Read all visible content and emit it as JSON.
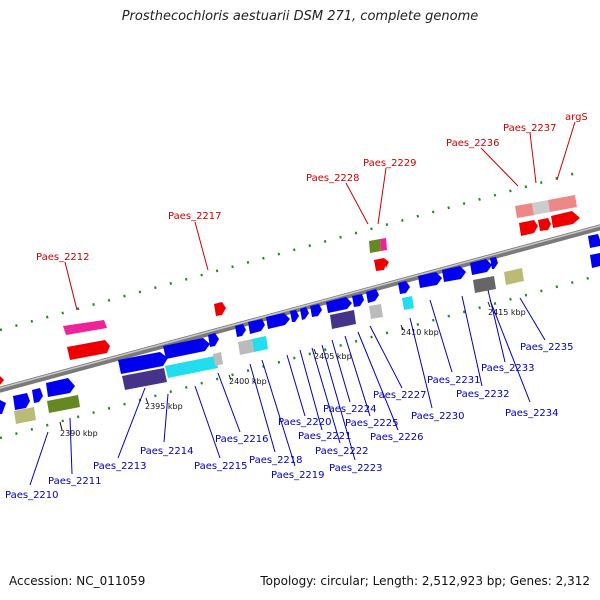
{
  "title": "Prosthecochloris aestuarii DSM 271, complete genome",
  "accession_label": "Accession: NC_011059",
  "topology_label": "Topology: circular; Length: 2,512,923 bp; Genes: 2,312",
  "kbp_ticks": [
    "2390 kbp",
    "2395 kbp",
    "2400 kbp",
    "2405 kbp",
    "2410 kbp",
    "2415 kbp"
  ],
  "upper_labels": [
    "Paes_2212",
    "Paes_2217",
    "Paes_2228",
    "Paes_2229",
    "Paes_2236",
    "Paes_2237",
    "argS"
  ],
  "lower_labels": [
    "Paes_2210",
    "Paes_2211",
    "Paes_2213",
    "Paes_2214",
    "Paes_2215",
    "Paes_2216",
    "Paes_2218",
    "Paes_2219",
    "Paes_2220",
    "Paes_2221",
    "Paes_2222",
    "Paes_2223",
    "Paes_2224",
    "Paes_2225",
    "Paes_2226",
    "Paes_2227",
    "Paes_2230",
    "Paes_2231",
    "Paes_2232",
    "Paes_2233",
    "Paes_2234",
    "Paes_2235"
  ],
  "colors": {
    "backbone": "#8a8a8a",
    "gene_forward": "#0000ee",
    "gene_red": "#ee0000",
    "gene_pink": "#ee2299",
    "gene_salmon": "#ee8888",
    "gene_olive": "#668822",
    "gene_khaki": "#bbbb77",
    "gene_purple": "#443388",
    "gene_cyan": "#22ddee",
    "gene_gray": "#bbbbbb",
    "dots": "#228822",
    "label_red": "#cc0000",
    "label_blue": "#0000bb"
  }
}
